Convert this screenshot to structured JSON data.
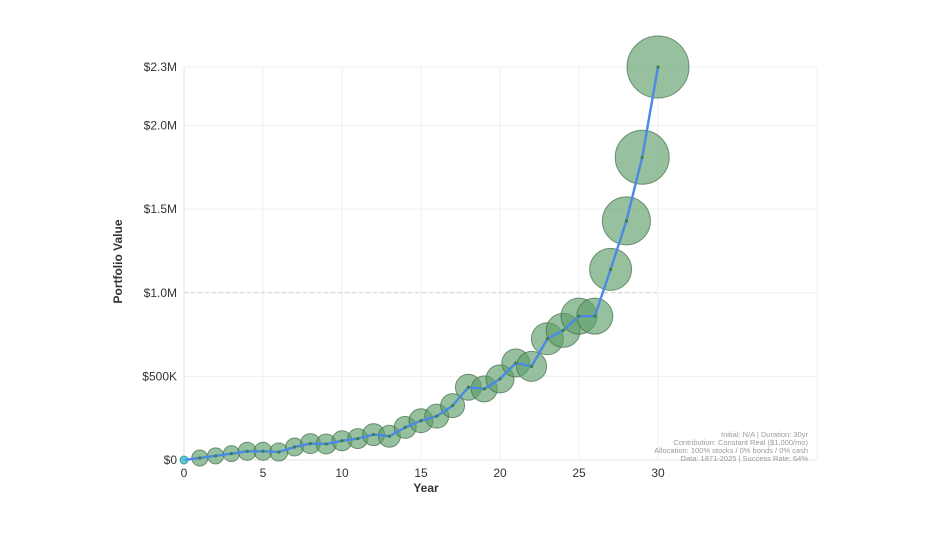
{
  "chart_data": {
    "type": "scatter",
    "xlabel": "Year",
    "ylabel": "Portfolio Value",
    "xlim": [
      0,
      32
    ],
    "ylim": [
      0,
      2350000
    ],
    "x_ticks": [
      0,
      5,
      10,
      15,
      20,
      25,
      30
    ],
    "y_ticks": [
      {
        "value": 0,
        "label": "$0"
      },
      {
        "value": 500000,
        "label": "$500K"
      },
      {
        "value": 1000000,
        "label": "$1.0M"
      },
      {
        "value": 1500000,
        "label": "$1.5M"
      },
      {
        "value": 2000000,
        "label": "$2.0M"
      },
      {
        "value": 2350000,
        "label": "$2.3M"
      }
    ],
    "grid": true,
    "reference_line": {
      "value": 1000000,
      "style": "dashed"
    },
    "colors": {
      "line": "#4a8ae6",
      "bubble_fill": "#5f9e6a",
      "bubble_stroke": "#3f6b47",
      "start_point": "#4fc3c9",
      "grid": "#efefef",
      "reference": "#cfcfcf"
    },
    "series": [
      {
        "x": [
          0,
          1,
          2,
          3,
          4,
          5,
          6,
          7,
          8,
          9,
          10,
          11,
          12,
          13,
          14,
          15,
          16,
          17,
          18,
          19,
          20,
          21,
          22,
          23,
          24,
          25,
          26,
          27,
          28,
          29,
          30
        ],
        "values": [
          0,
          12000,
          25000,
          38000,
          52000,
          52000,
          48000,
          78000,
          98000,
          96000,
          115000,
          128000,
          152000,
          142000,
          195000,
          235000,
          262000,
          325000,
          435000,
          425000,
          485000,
          580000,
          560000,
          725000,
          775000,
          860000,
          860000,
          1140000,
          1430000,
          1810000,
          2350000
        ],
        "bubble_size": [
          4,
          8,
          8,
          8,
          9,
          9,
          9,
          9,
          10,
          10,
          10,
          10,
          11,
          11,
          11,
          12,
          12,
          12,
          13,
          13,
          14,
          14,
          15,
          16,
          17,
          18,
          18,
          21,
          24,
          27,
          31
        ]
      }
    ],
    "annotation": {
      "lines": [
        "Initial: N/A | Duration: 30yr",
        "Contribution: Constant Real ($1,000/mo)",
        "Allocation: 100% stocks / 0% bonds / 0% cash",
        "Data: 1871-2025 | Success Rate: 64%"
      ]
    }
  }
}
